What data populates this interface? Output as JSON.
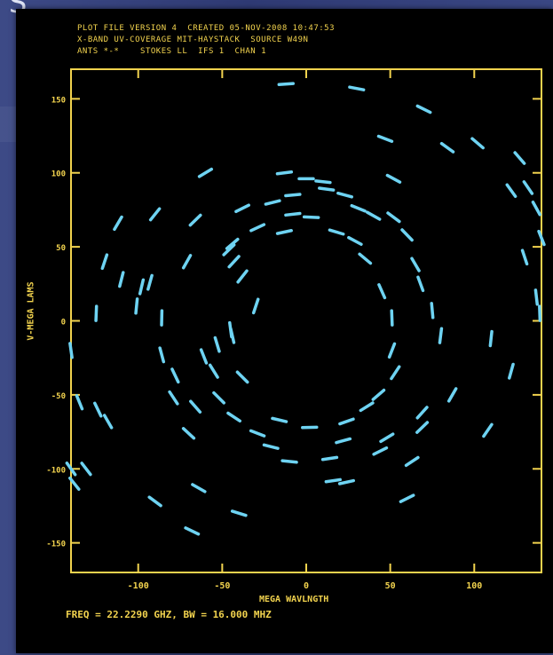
{
  "header": {
    "corner_glyph": "S",
    "line1": "PLOT FILE VERSION 4  CREATED 05-NOV-2008 10:47:53",
    "line2": "X-BAND UV-COVERAGE MIT-HAYSTACK  SOURCE W49N",
    "line3": "ANTS *-*    STOKES LL  IFS 1  CHAN 1"
  },
  "footer_text": "FREQ = 22.2290 GHZ, BW = 16.000 MHZ",
  "colors": {
    "axis": "#f2d34e",
    "points": "#6ed3f2",
    "plot_bg": "#000000",
    "slide_bg": "#34407a"
  },
  "chart_data": {
    "type": "scatter",
    "xlabel": "MEGA WAVLNGTH",
    "ylabel": "V-MEGA LAMS",
    "xlim": [
      -140,
      140
    ],
    "ylim": [
      -170,
      170
    ],
    "xticks": [
      -100,
      -50,
      0,
      50,
      100
    ],
    "yticks": [
      150,
      100,
      50,
      0,
      -50,
      -100,
      -150
    ],
    "xtick_labels": [
      "-100",
      "-50",
      "0",
      "50",
      "100"
    ],
    "ytick_labels": [
      "150",
      "100",
      "50",
      "0",
      "-50",
      "-100",
      "-150"
    ],
    "grid": false,
    "legend": "none",
    "series": [
      {
        "marker": "short-dash",
        "points": [
          [
            -12,
            160
          ],
          [
            30,
            157
          ],
          [
            70,
            143
          ],
          [
            102,
            120
          ],
          [
            127,
            110
          ],
          [
            84,
            117
          ],
          [
            47,
            123
          ],
          [
            52,
            96
          ],
          [
            122,
            88
          ],
          [
            132,
            90
          ],
          [
            137,
            76
          ],
          [
            140,
            56
          ],
          [
            130,
            43
          ],
          [
            137,
            16
          ],
          [
            139,
            5
          ],
          [
            122,
            -34
          ],
          [
            108,
            -74
          ],
          [
            63,
            -95
          ],
          [
            16,
            -108
          ],
          [
            24,
            -109
          ],
          [
            -40,
            -130
          ],
          [
            -68,
            -142
          ],
          [
            -90,
            -122
          ],
          [
            -135,
            -55
          ],
          [
            -131,
            -100
          ],
          [
            -124,
            -60
          ],
          [
            -138,
            -110
          ],
          [
            -140,
            -100
          ],
          [
            -140,
            -20
          ],
          [
            -125,
            5
          ],
          [
            -120,
            40
          ],
          [
            -112,
            66
          ],
          [
            -90,
            72
          ],
          [
            -60,
            100
          ],
          [
            -110,
            28
          ],
          [
            -98,
            23
          ],
          [
            -101,
            10
          ],
          [
            -86,
            2
          ],
          [
            -93,
            26
          ],
          [
            -71,
            40
          ],
          [
            -66,
            68
          ],
          [
            -44,
            52
          ],
          [
            -38,
            76
          ],
          [
            -20,
            80
          ],
          [
            -8,
            85
          ],
          [
            12,
            89
          ],
          [
            23,
            85
          ],
          [
            31,
            76
          ],
          [
            40,
            71
          ],
          [
            52,
            70
          ],
          [
            60,
            58
          ],
          [
            65,
            38
          ],
          [
            68,
            25
          ],
          [
            75,
            7
          ],
          [
            80,
            -10
          ],
          [
            87,
            -50
          ],
          [
            69,
            -62
          ],
          [
            69,
            -72
          ],
          [
            48,
            -79
          ],
          [
            44,
            -88
          ],
          [
            22,
            -81
          ],
          [
            14,
            -93
          ],
          [
            -10,
            -95
          ],
          [
            -21,
            -85
          ],
          [
            -29,
            -76
          ],
          [
            -43,
            -65
          ],
          [
            -52,
            -52
          ],
          [
            -66,
            -58
          ],
          [
            -70,
            -76
          ],
          [
            -79,
            -52
          ],
          [
            -78,
            -37
          ],
          [
            -86,
            -23
          ],
          [
            -61,
            -24
          ],
          [
            -53,
            -16
          ],
          [
            -45,
            -6
          ],
          [
            -30,
            10
          ],
          [
            -38,
            30
          ],
          [
            -46,
            48
          ],
          [
            -29,
            63
          ],
          [
            -13,
            60
          ],
          [
            -8,
            72
          ],
          [
            3,
            70
          ],
          [
            18,
            60
          ],
          [
            29,
            54
          ],
          [
            35,
            42
          ],
          [
            45,
            20
          ],
          [
            51,
            2
          ],
          [
            51,
            -20
          ],
          [
            53,
            -35
          ],
          [
            43,
            -50
          ],
          [
            36,
            -58
          ],
          [
            24,
            -68
          ],
          [
            2,
            -72
          ],
          [
            -16,
            -67
          ],
          [
            -38,
            -38
          ],
          [
            -44,
            -10
          ],
          [
            -55,
            -34
          ],
          [
            -43,
            40
          ],
          [
            -13,
            100
          ],
          [
            -118,
            -68
          ],
          [
            -64,
            -113
          ],
          [
            0,
            96
          ],
          [
            10,
            94
          ],
          [
            60,
            -120
          ],
          [
            110,
            -12
          ]
        ]
      }
    ]
  }
}
